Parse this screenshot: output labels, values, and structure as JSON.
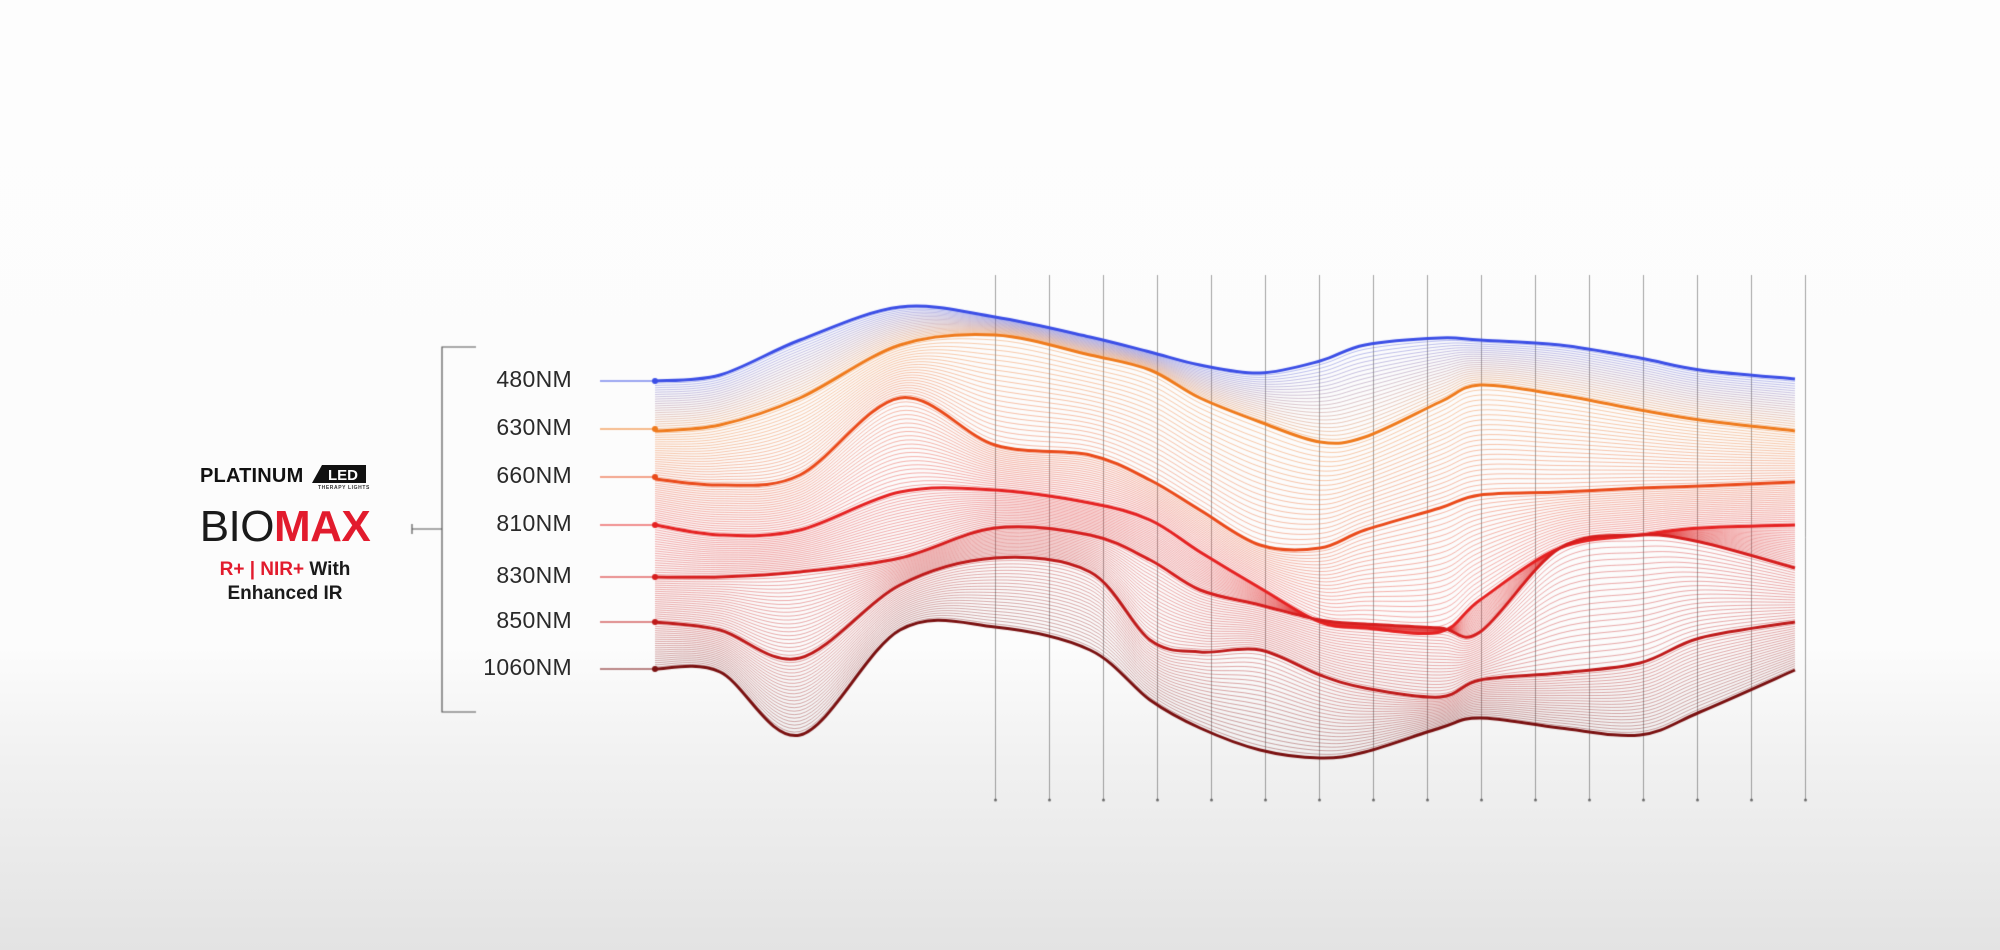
{
  "brand": {
    "logo_text": "PLATINUM",
    "logo_badge_text": "LED",
    "logo_subtext": "THERAPY LIGHTS",
    "product_prefix": "BIO",
    "product_suffix": "MAX",
    "tagline_part1": "R+",
    "tagline_sep": " | ",
    "tagline_part2": "NIR+",
    "tagline_part3": " With",
    "tagline_line2": "Enhanced IR"
  },
  "colors": {
    "accent_red": "#e21b2d",
    "text_dark": "#1a1a1a"
  },
  "wavelengths": [
    {
      "label": "480NM",
      "color": "#3b4ee6"
    },
    {
      "label": "630NM",
      "color": "#ef7a1c"
    },
    {
      "label": "660NM",
      "color": "#ea4a1a"
    },
    {
      "label": "810NM",
      "color": "#e52222"
    },
    {
      "label": "830NM",
      "color": "#d61e1e"
    },
    {
      "label": "850NM",
      "color": "#bf1a1a"
    },
    {
      "label": "1060NM",
      "color": "#7a1010"
    }
  ]
}
